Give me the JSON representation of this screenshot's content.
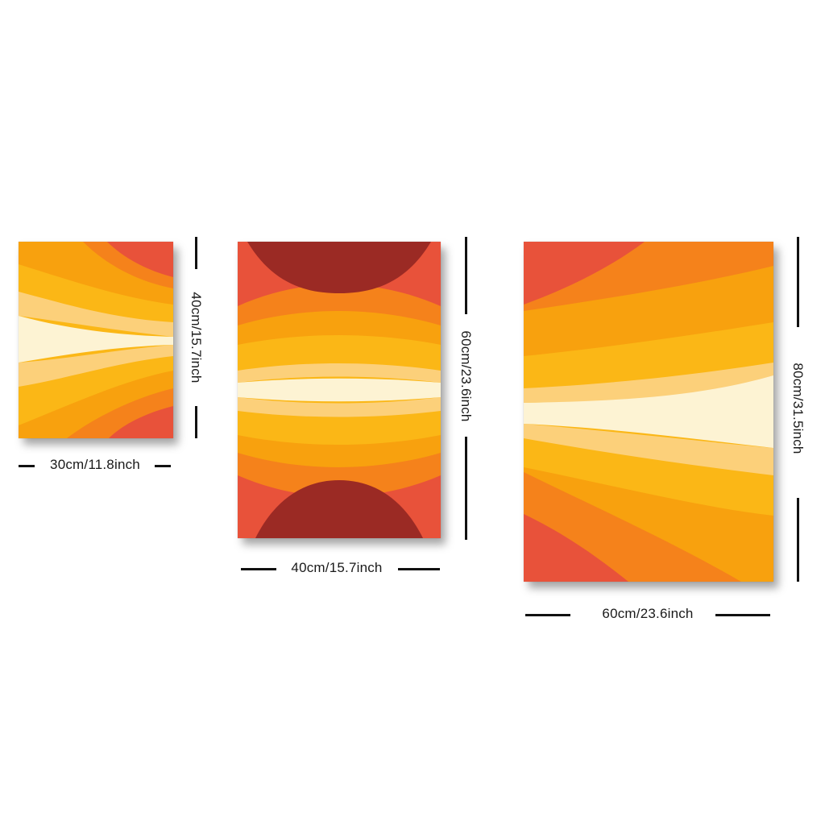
{
  "products": [
    {
      "name": "small-canvas",
      "width_label": "30cm/11.8inch",
      "height_label": "40cm/15.7inch"
    },
    {
      "name": "medium-canvas",
      "width_label": "40cm/15.7inch",
      "height_label": "60cm/23.6inch"
    },
    {
      "name": "large-canvas",
      "width_label": "60cm/23.6inch",
      "height_label": "80cm/31.5inch"
    }
  ],
  "palette": {
    "cream": "#fdf3d3",
    "pale": "#fcd07a",
    "yellow": "#fbb716",
    "amber": "#f8a10e",
    "orange": "#f5821b",
    "red": "#e8523a",
    "maroon": "#9b2a24"
  }
}
